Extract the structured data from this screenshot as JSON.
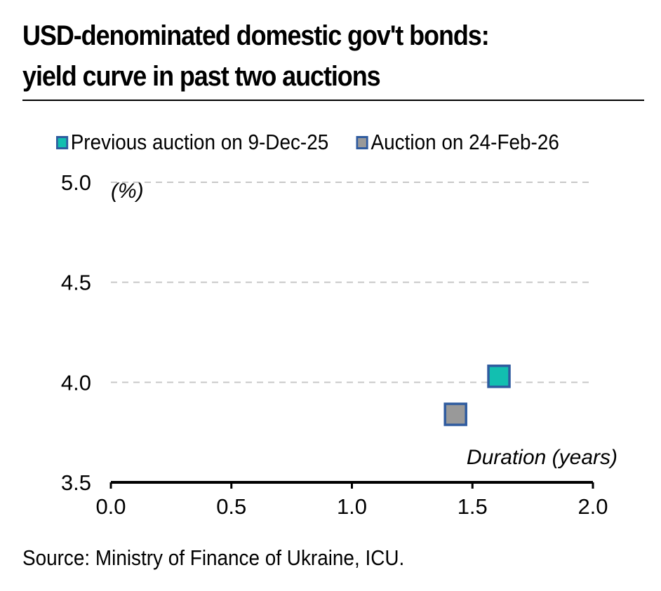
{
  "title_line1": "USD-denominated domestic gov't bonds:",
  "title_line2": "yield curve in past two auctions",
  "source": "Source: Ministry of Finance of Ukraine, ICU.",
  "colors": {
    "previous": "#12bfb0",
    "current": "#999999",
    "marker_border": "#2f5b9f",
    "grid": "#c8c8c8"
  },
  "chart_data": {
    "type": "scatter",
    "ylabel": "(%)",
    "xlabel": "Duration (years)",
    "xlim": [
      0.0,
      2.0
    ],
    "ylim": [
      3.5,
      5.0
    ],
    "x_ticks": [
      "0.0",
      "0.5",
      "1.0",
      "1.5",
      "2.0"
    ],
    "y_ticks": [
      "3.5",
      "4.0",
      "4.5",
      "5.0"
    ],
    "grid": "horizontal dashed",
    "legend_position": "top",
    "series": [
      {
        "name": "Previous auction on 9-Dec-25",
        "points": [
          {
            "x": 1.61,
            "y": 4.03
          }
        ]
      },
      {
        "name": "Auction on 24-Feb-26",
        "points": [
          {
            "x": 1.43,
            "y": 3.84
          }
        ]
      }
    ]
  }
}
